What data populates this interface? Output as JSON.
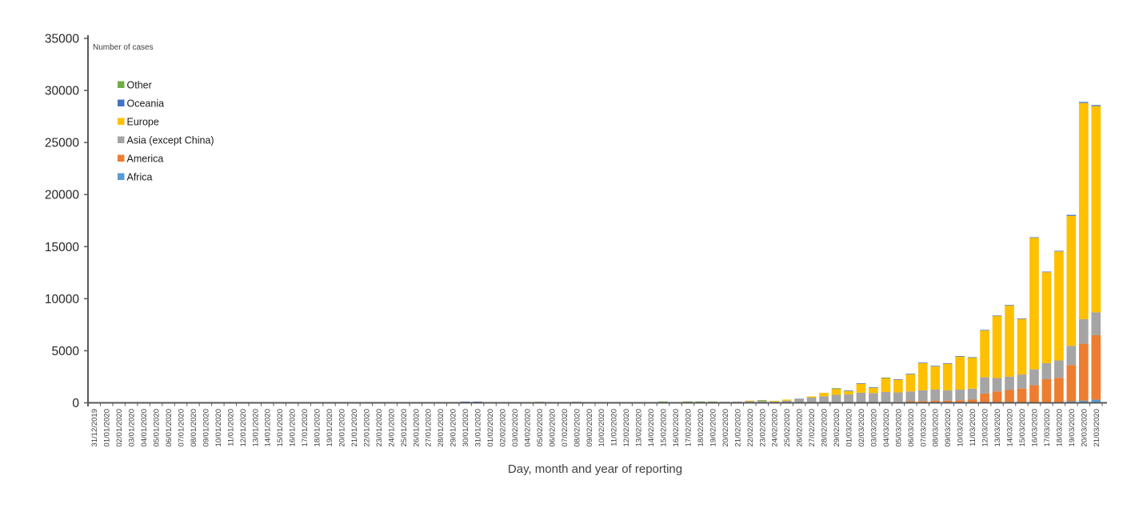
{
  "chart_data": {
    "type": "bar",
    "stacked": true,
    "title": "Number of cases",
    "xlabel": "Day, month and year of reporting",
    "ylim": [
      0,
      35000
    ],
    "ytick_step": 5000,
    "yticks": [
      0,
      5000,
      10000,
      15000,
      20000,
      25000,
      30000,
      35000
    ],
    "grid": false,
    "legend_position": "inside-top-left",
    "legend_order": [
      "Other",
      "Oceania",
      "Europe",
      "Asia (except China)",
      "America",
      "Africa"
    ],
    "axis_color": "#595959",
    "categories": [
      "31/12/2019",
      "01/01/2020",
      "02/01/2020",
      "03/01/2020",
      "04/01/2020",
      "05/01/2020",
      "06/01/2020",
      "07/01/2020",
      "08/01/2020",
      "09/01/2020",
      "10/01/2020",
      "11/01/2020",
      "12/01/2020",
      "13/01/2020",
      "14/01/2020",
      "15/01/2020",
      "16/01/2020",
      "17/01/2020",
      "18/01/2020",
      "19/01/2020",
      "20/01/2020",
      "21/01/2020",
      "22/01/2020",
      "23/01/2020",
      "24/01/2020",
      "25/01/2020",
      "26/01/2020",
      "27/01/2020",
      "28/01/2020",
      "29/01/2020",
      "30/01/2020",
      "31/01/2020",
      "01/02/2020",
      "02/02/2020",
      "03/02/2020",
      "04/02/2020",
      "05/02/2020",
      "06/02/2020",
      "07/02/2020",
      "08/02/2020",
      "09/02/2020",
      "10/02/2020",
      "11/02/2020",
      "12/02/2020",
      "13/02/2020",
      "14/02/2020",
      "15/02/2020",
      "16/02/2020",
      "17/02/2020",
      "18/02/2020",
      "19/02/2020",
      "20/02/2020",
      "21/02/2020",
      "22/02/2020",
      "23/02/2020",
      "24/02/2020",
      "25/02/2020",
      "26/02/2020",
      "27/02/2020",
      "28/02/2020",
      "29/02/2020",
      "01/03/2020",
      "02/03/2020",
      "03/03/2020",
      "04/03/2020",
      "05/03/2020",
      "06/03/2020",
      "07/03/2020",
      "08/03/2020",
      "09/03/2020",
      "10/03/2020",
      "11/03/2020",
      "12/03/2020",
      "13/03/2020",
      "14/03/2020",
      "15/03/2020",
      "16/03/2020",
      "17/03/2020",
      "18/03/2020",
      "19/03/2020",
      "20/03/2020",
      "21/03/2020"
    ],
    "series": [
      {
        "name": "Africa",
        "color": "#5B9BD5",
        "values": [
          0,
          0,
          0,
          0,
          0,
          0,
          0,
          0,
          0,
          0,
          0,
          0,
          0,
          0,
          0,
          0,
          0,
          0,
          0,
          0,
          0,
          0,
          0,
          0,
          0,
          0,
          0,
          0,
          0,
          0,
          0,
          0,
          0,
          0,
          0,
          0,
          0,
          0,
          0,
          0,
          0,
          0,
          0,
          0,
          0,
          0,
          0,
          0,
          0,
          0,
          0,
          0,
          0,
          0,
          0,
          0,
          0,
          0,
          0,
          0,
          0,
          0,
          0,
          0,
          0,
          0,
          25,
          20,
          20,
          10,
          10,
          10,
          20,
          25,
          30,
          35,
          45,
          40,
          50,
          150,
          200,
          300
        ]
      },
      {
        "name": "America",
        "color": "#ED7D31",
        "values": [
          0,
          0,
          0,
          0,
          0,
          0,
          0,
          0,
          0,
          0,
          0,
          0,
          0,
          0,
          0,
          0,
          0,
          0,
          0,
          0,
          0,
          0,
          0,
          0,
          0,
          0,
          0,
          0,
          0,
          0,
          0,
          0,
          0,
          0,
          0,
          0,
          0,
          0,
          0,
          0,
          0,
          0,
          0,
          0,
          0,
          0,
          0,
          0,
          0,
          0,
          0,
          0,
          0,
          0,
          0,
          0,
          10,
          0,
          10,
          15,
          25,
          20,
          25,
          15,
          75,
          100,
          130,
          155,
          180,
          205,
          230,
          300,
          870,
          1075,
          1200,
          1330,
          1640,
          2230,
          2355,
          3480,
          5480,
          6195
        ]
      },
      {
        "name": "Asia (except China)",
        "color": "#A5A5A5",
        "values": [
          0,
          0,
          0,
          0,
          0,
          0,
          0,
          0,
          0,
          0,
          0,
          0,
          0,
          0,
          0,
          0,
          0,
          0,
          0,
          0,
          0,
          0,
          0,
          0,
          0,
          0,
          0,
          0,
          0,
          0,
          0,
          0,
          0,
          0,
          0,
          0,
          0,
          0,
          0,
          0,
          0,
          0,
          0,
          0,
          0,
          0,
          0,
          0,
          0,
          0,
          40,
          100,
          115,
          160,
          185,
          110,
          200,
          310,
          490,
          615,
          745,
          795,
          945,
          920,
          970,
          895,
          945,
          1025,
          1075,
          975,
          1025,
          1050,
          1560,
          1280,
          1280,
          1355,
          1535,
          1535,
          1665,
          1845,
          2355,
          2195
        ]
      },
      {
        "name": "Europe",
        "color": "#FFC000",
        "values": [
          0,
          0,
          0,
          0,
          0,
          0,
          0,
          0,
          0,
          0,
          0,
          0,
          0,
          0,
          0,
          0,
          0,
          0,
          0,
          0,
          0,
          0,
          0,
          0,
          0,
          0,
          0,
          0,
          0,
          0,
          0,
          0,
          0,
          0,
          0,
          0,
          0,
          0,
          0,
          0,
          0,
          0,
          0,
          0,
          0,
          0,
          0,
          0,
          0,
          0,
          0,
          0,
          0,
          45,
          65,
          70,
          100,
          60,
          115,
          330,
          600,
          345,
          895,
          540,
          1355,
          1240,
          1665,
          2635,
          2250,
          2585,
          3200,
          2990,
          4510,
          5960,
          6840,
          5330,
          12630,
          8740,
          10470,
          12475,
          20765,
          19810
        ]
      },
      {
        "name": "Oceania",
        "color": "#4472C4",
        "values": [
          0,
          0,
          0,
          0,
          0,
          0,
          0,
          0,
          0,
          0,
          0,
          0,
          0,
          0,
          0,
          0,
          0,
          0,
          0,
          0,
          0,
          0,
          0,
          0,
          0,
          0,
          0,
          0,
          0,
          0,
          115,
          115,
          0,
          0,
          0,
          0,
          0,
          0,
          0,
          0,
          0,
          0,
          0,
          0,
          0,
          0,
          0,
          0,
          0,
          0,
          0,
          0,
          0,
          0,
          0,
          0,
          0,
          10,
          0,
          0,
          10,
          10,
          5,
          5,
          10,
          25,
          25,
          25,
          25,
          25,
          25,
          30,
          40,
          40,
          50,
          50,
          50,
          55,
          60,
          100,
          100,
          100
        ]
      },
      {
        "name": "Other",
        "color": "#70AD47",
        "values": [
          0,
          0,
          0,
          0,
          0,
          0,
          0,
          0,
          0,
          0,
          0,
          0,
          0,
          0,
          0,
          0,
          0,
          0,
          0,
          0,
          0,
          0,
          0,
          0,
          0,
          0,
          0,
          0,
          0,
          0,
          0,
          0,
          0,
          0,
          0,
          0,
          100,
          0,
          0,
          100,
          0,
          0,
          0,
          0,
          0,
          0,
          130,
          0,
          130,
          130,
          80,
          0,
          0,
          0,
          5,
          0,
          0,
          0,
          0,
          0,
          20,
          0,
          0,
          0,
          10,
          0,
          0,
          0,
          0,
          0,
          0,
          0,
          0,
          0,
          0,
          0,
          0,
          0,
          0,
          0,
          0,
          0
        ]
      }
    ]
  }
}
